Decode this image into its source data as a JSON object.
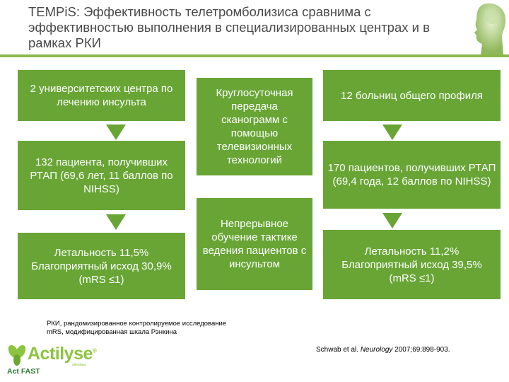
{
  "title": "TEMPiS: Эффективность телетромболизиса сравнима с эффективностью выполнения в специализированных центрах и в рамках РКИ",
  "colors": {
    "box": "#68a535",
    "rule": "#8bb84a",
    "logo": "#8bc53f"
  },
  "left_column": {
    "box1": "2 университетских центра по лечению инсульта",
    "box2": "132 пациента, получивших РТАП (69,6 лет, 11 баллов по NIHSS)",
    "box3": "Летальность 11,5% Благоприятный исход 30,9% (mRS ≤1)"
  },
  "middle_column": {
    "box1": "Круглосуточная передача сканограмм с помощью телевизионных технологий",
    "box2": "Непрерывное обучение тактике ведения пациентов с инсультом"
  },
  "right_column": {
    "box1": "12 больниц общего профиля",
    "box2": "170 пациентов, получивших РТАП (69,4 года, 12 баллов по NIHSS)",
    "box3": "Летальность 11,2% Благоприятный исход 39,5% (mRS ≤1)"
  },
  "notes": {
    "line1": "РКИ, рандомизированное контролируемое исследование",
    "line2": "mRS, модифицированная шкала Рэнкина"
  },
  "reference": {
    "prefix": "Schwab et al. ",
    "journal": "Neurology",
    "suffix": " 2007;69:898-903."
  },
  "logo": {
    "name": "Actilyse",
    "registered": "®",
    "subtitle": "alteplase",
    "tagline": "Act FAST"
  },
  "icons": {
    "header": "human-head-icon"
  }
}
